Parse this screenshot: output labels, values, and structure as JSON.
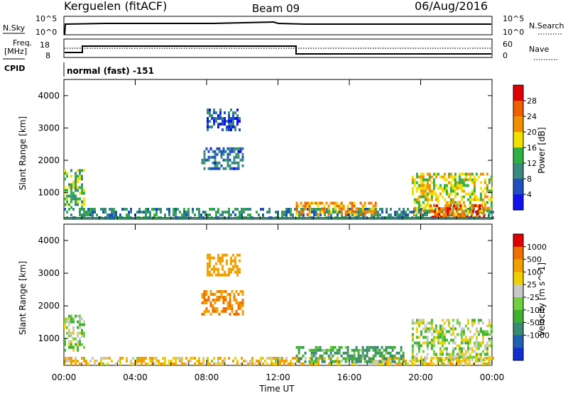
{
  "header": {
    "station": "Kerguelen (fitACF)",
    "beam": "Beam 09",
    "date": "06/Aug/2016",
    "program": "normal (fast) -151"
  },
  "params": {
    "nsky_label": "N.Sky",
    "nsearch_label": "N.Search",
    "freq_label_1": "Freq.",
    "freq_label_2": "[MHz]",
    "nave_label": "Nave",
    "cpid_label": "CPID",
    "left_ticks_top": [
      "10^5",
      "10^0"
    ],
    "right_ticks_top": [
      "10^5",
      "10^0"
    ],
    "left_ticks_freq": [
      "18",
      "8"
    ],
    "right_ticks_nave": [
      "60",
      "0"
    ]
  },
  "chart_data": [
    {
      "type": "heatmap",
      "title": "",
      "panel": "power",
      "ylabel": "Slant Range [km]",
      "xlabel": "",
      "colorbar_label": "Power [dB]",
      "colorbar_ticks": [
        "4",
        "8",
        "12",
        "16",
        "20",
        "24",
        "28"
      ],
      "colorbar_colors": [
        "#1010f0",
        "#2050c0",
        "#3a8a80",
        "#30b040",
        "#f0e000",
        "#f09000",
        "#f06000",
        "#e00000"
      ],
      "ylim": [
        180,
        4500
      ],
      "yticks": [
        "1000",
        "2000",
        "3000",
        "4000"
      ],
      "x": [
        "00:00",
        "04:00",
        "08:00",
        "12:00",
        "16:00",
        "20:00",
        "00:00"
      ],
      "regions": [
        {
          "t0": 0.0,
          "t1": 1.1,
          "r0": 500,
          "r1": 1700,
          "level": 14
        },
        {
          "t0": 0.0,
          "t1": 24.0,
          "r0": 180,
          "r1": 450,
          "level": 10
        },
        {
          "t0": 7.7,
          "t1": 10.0,
          "r0": 1700,
          "r1": 2400,
          "level": 8
        },
        {
          "t0": 8.0,
          "t1": 9.9,
          "r0": 2900,
          "r1": 3550,
          "level": 6
        },
        {
          "t0": 13.0,
          "t1": 17.5,
          "r0": 280,
          "r1": 700,
          "level": 22
        },
        {
          "t0": 19.5,
          "t1": 24.0,
          "r0": 300,
          "r1": 1600,
          "level": 18
        },
        {
          "t0": 20.5,
          "t1": 23.5,
          "r0": 200,
          "r1": 600,
          "level": 26
        }
      ]
    },
    {
      "type": "heatmap",
      "title": "",
      "panel": "velocity",
      "ylabel": "Slant Range [km]",
      "xlabel": "Time UT",
      "colorbar_label": "Velocity [m s^-1]",
      "colorbar_ticks": [
        "1000",
        "500",
        "100",
        "25",
        "-25",
        "-100",
        "-500",
        "-1000"
      ],
      "colorbar_colors": [
        "#1030d0",
        "#2060b0",
        "#3a8a70",
        "#40b030",
        "#70d040",
        "#c8c8c8",
        "#f0d000",
        "#f0a000",
        "#f07000",
        "#e00000"
      ],
      "ylim": [
        180,
        4500
      ],
      "yticks": [
        "1000",
        "2000",
        "3000",
        "4000"
      ],
      "x": [
        "00:00",
        "04:00",
        "08:00",
        "12:00",
        "16:00",
        "20:00",
        "00:00"
      ],
      "regions": [
        {
          "t0": 0.0,
          "t1": 1.1,
          "r0": 600,
          "r1": 1700,
          "level": 0
        },
        {
          "t0": 0.0,
          "t1": 24.0,
          "r0": 180,
          "r1": 400,
          "level": -50
        },
        {
          "t0": 7.7,
          "t1": 10.0,
          "r0": 1700,
          "r1": 2400,
          "level": -300
        },
        {
          "t0": 8.0,
          "t1": 9.9,
          "r0": 2900,
          "r1": 3550,
          "level": -200
        },
        {
          "t0": 13.0,
          "t1": 19.0,
          "r0": 250,
          "r1": 700,
          "level": 60
        },
        {
          "t0": 19.5,
          "t1": 24.0,
          "r0": 300,
          "r1": 1600,
          "level": 0
        }
      ]
    }
  ]
}
